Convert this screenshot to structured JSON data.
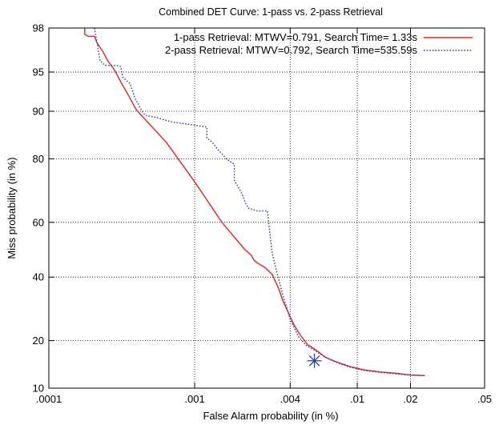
{
  "chart_data": {
    "type": "line",
    "title": "Combined DET Curve: 1-pass vs. 2-pass Retrieval",
    "xlabel": "False Alarm probability (in %)",
    "ylabel": "Miss probability (in %)",
    "x_scale": "normal-deviate",
    "y_scale": "normal-deviate",
    "xlim": [
      0.0001,
      0.05
    ],
    "ylim": [
      10,
      98
    ],
    "x_ticks": [
      {
        "value": 0.0001,
        "label": ".0001"
      },
      {
        "value": 0.001,
        "label": ".001"
      },
      {
        "value": 0.004,
        "label": ".004"
      },
      {
        "value": 0.01,
        "label": ".01"
      },
      {
        "value": 0.02,
        "label": ".02"
      },
      {
        "value": 0.05,
        "label": ".05"
      }
    ],
    "y_ticks": [
      {
        "value": 10,
        "label": "10"
      },
      {
        "value": 20,
        "label": "20"
      },
      {
        "value": 40,
        "label": "40"
      },
      {
        "value": 60,
        "label": "60"
      },
      {
        "value": 80,
        "label": "80"
      },
      {
        "value": 90,
        "label": "90"
      },
      {
        "value": 95,
        "label": "95"
      },
      {
        "value": 98,
        "label": "98"
      }
    ],
    "grid": true,
    "legend_position": "top-right",
    "series": [
      {
        "name": "1-pass Retrieval: MTWV=0.791, Search Time=   1.33s",
        "color": "#e8231d",
        "style": "solid",
        "points": [
          [
            0.00018,
            98
          ],
          [
            0.00018,
            97.7
          ],
          [
            0.00019,
            97.6
          ],
          [
            0.00021,
            97.6
          ],
          [
            0.00022,
            97.2
          ],
          [
            0.00024,
            96.7
          ],
          [
            0.00026,
            96.0
          ],
          [
            0.00029,
            95.2
          ],
          [
            0.00032,
            94.0
          ],
          [
            0.00036,
            92.4
          ],
          [
            0.00041,
            90.2
          ],
          [
            0.00065,
            84.0
          ],
          [
            0.001,
            73.5
          ],
          [
            0.0015,
            60.0
          ],
          [
            0.0021,
            50.0
          ],
          [
            0.0023,
            48.0
          ],
          [
            0.0024,
            46.0
          ],
          [
            0.0025,
            45.2
          ],
          [
            0.0028,
            43.5
          ],
          [
            0.0031,
            41.0
          ],
          [
            0.0034,
            36.0
          ],
          [
            0.0036,
            32.0
          ],
          [
            0.0039,
            28.0
          ],
          [
            0.0042,
            24.5
          ],
          [
            0.0046,
            21.5
          ],
          [
            0.0051,
            19.0
          ],
          [
            0.0058,
            17.5
          ],
          [
            0.0065,
            16.0
          ],
          [
            0.0075,
            15.0
          ],
          [
            0.009,
            14.0
          ],
          [
            0.011,
            13.3
          ],
          [
            0.0135,
            12.9
          ],
          [
            0.017,
            12.6
          ],
          [
            0.02,
            12.3
          ],
          [
            0.024,
            12.2
          ]
        ]
      },
      {
        "name": "2-pass Retrieval: MTWV=0.792, Search Time=535.59s",
        "color": "#2f3f9e",
        "style": "dotted",
        "points": [
          [
            0.00021,
            98
          ],
          [
            0.00022,
            97.2
          ],
          [
            0.00023,
            96.0
          ],
          [
            0.00025,
            95.6
          ],
          [
            0.0003,
            95.6
          ],
          [
            0.00032,
            95.5
          ],
          [
            0.00033,
            94.5
          ],
          [
            0.00037,
            93.8
          ],
          [
            0.0004,
            92.0
          ],
          [
            0.00045,
            89.9
          ],
          [
            0.00047,
            89.3
          ],
          [
            0.00055,
            89.0
          ],
          [
            0.0007,
            88.2
          ],
          [
            0.0012,
            87.2
          ],
          [
            0.0012,
            85.0
          ],
          [
            0.0013,
            84.0
          ],
          [
            0.0014,
            82.5
          ],
          [
            0.0016,
            80.0
          ],
          [
            0.0018,
            78.5
          ],
          [
            0.0018,
            74.0
          ],
          [
            0.002,
            70.0
          ],
          [
            0.0021,
            67.0
          ],
          [
            0.0022,
            65.0
          ],
          [
            0.0025,
            64.0
          ],
          [
            0.0029,
            64.0
          ],
          [
            0.003,
            56.0
          ],
          [
            0.0031,
            49.0
          ],
          [
            0.0033,
            42.0
          ],
          [
            0.0036,
            34.0
          ],
          [
            0.004,
            26.0
          ],
          [
            0.0045,
            21.0
          ],
          [
            0.005,
            18.8
          ],
          [
            0.0056,
            17.6
          ],
          [
            0.0065,
            16.0
          ],
          [
            0.0075,
            14.9
          ],
          [
            0.009,
            13.9
          ],
          [
            0.011,
            13.2
          ],
          [
            0.0135,
            12.8
          ],
          [
            0.017,
            12.5
          ],
          [
            0.02,
            12.3
          ],
          [
            0.024,
            12.2
          ]
        ]
      }
    ],
    "marker": {
      "type": "star",
      "x": 0.0056,
      "y": 15.2,
      "color": "#2f3f9e"
    }
  }
}
